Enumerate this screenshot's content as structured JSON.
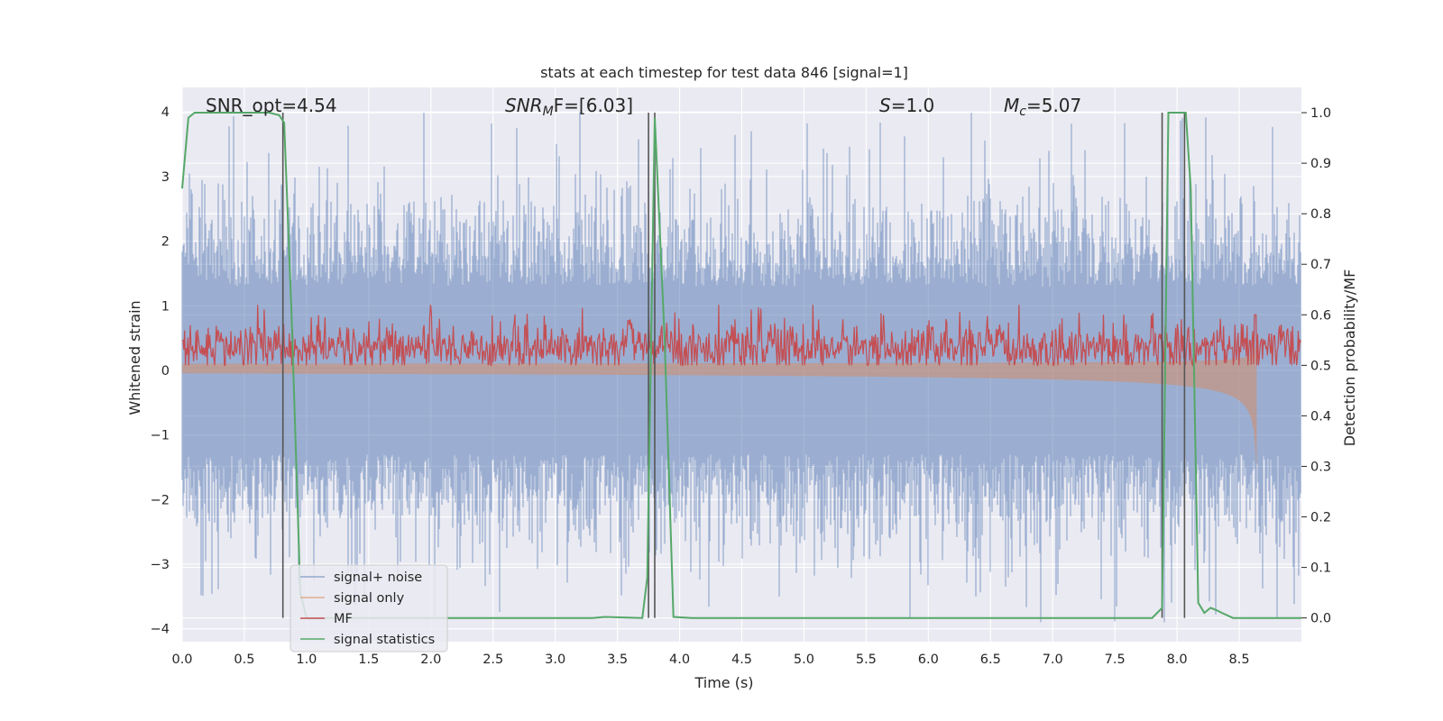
{
  "chart_data": {
    "type": "line",
    "title": "stats at each timestep for test data 846 [signal=1]",
    "xlabel": "Time (s)",
    "ylabel_left": "Whitened strain",
    "ylabel_right": "Detection probability/MF",
    "xlim": [
      0,
      9.0
    ],
    "ylim_left": [
      -4.2,
      4.38
    ],
    "ylim_right": [
      -0.047,
      1.05
    ],
    "x_ticks": [
      "0.0",
      "0.5",
      "1.0",
      "1.5",
      "2.0",
      "2.5",
      "3.0",
      "3.5",
      "4.0",
      "4.5",
      "5.0",
      "5.5",
      "6.0",
      "6.5",
      "7.0",
      "7.5",
      "8.0",
      "8.5"
    ],
    "y_ticks_left": [
      "4",
      "3",
      "2",
      "1",
      "0",
      "−1",
      "−2",
      "−3",
      "−4"
    ],
    "y_ticks_right": [
      "1.0",
      "0.9",
      "0.8",
      "0.7",
      "0.6",
      "0.5",
      "0.4",
      "0.3",
      "0.2",
      "0.1",
      "0.0"
    ],
    "grid": true,
    "legend_placement": "lower-left",
    "annotations": {
      "snr_opt": "SNR_opt=4.54",
      "snr_mf_sym": "SNR",
      "snr_mf_sub": "M",
      "snr_mf_rest": "F=[6.03]",
      "s_sym": "S",
      "s_rest": "=1.0",
      "mc_sym": "M",
      "mc_sub": "c",
      "mc_rest": "=5.07"
    },
    "series": [
      {
        "name": "signal+ noise",
        "color": "#4c72b0",
        "description": "noise band approx ±2.5 with spikes to ±4"
      },
      {
        "name": "signal only",
        "color": "#dd8452",
        "chirp_end_s": 8.65
      },
      {
        "name": "MF",
        "color": "#c44e52",
        "typical_range": [
          0.02,
          0.45
        ]
      },
      {
        "name": "signal statistics",
        "color": "#55a868",
        "x": [
          0.0,
          0.05,
          0.1,
          0.7,
          0.78,
          0.82,
          0.88,
          0.95,
          1.0,
          3.3,
          3.4,
          3.7,
          3.74,
          3.8,
          3.88,
          3.95,
          4.1,
          7.8,
          7.88,
          7.93,
          8.07,
          8.11,
          8.17,
          8.22,
          8.27,
          8.32,
          8.36,
          8.45,
          8.55,
          8.65,
          9.0
        ],
        "y": [
          0.85,
          0.99,
          1.0,
          1.0,
          0.995,
          0.98,
          0.6,
          0.05,
          0.0,
          0.0,
          0.002,
          0.0,
          0.08,
          0.99,
          0.55,
          0.002,
          0.0,
          0.0,
          0.02,
          1.0,
          1.0,
          0.85,
          0.03,
          0.01,
          0.02,
          0.015,
          0.01,
          0.0,
          0.0,
          0.0,
          0.0
        ]
      }
    ],
    "vertical_markers_s": [
      0.81,
      3.75,
      3.8,
      7.88,
      8.06
    ],
    "marker_color": "#555555"
  },
  "legend": [
    "signal+ noise",
    "signal only",
    "MF",
    "signal statistics"
  ],
  "colors": {
    "plot_bg": "#eaeaf2",
    "grid": "#ffffff",
    "text": "#262626"
  }
}
